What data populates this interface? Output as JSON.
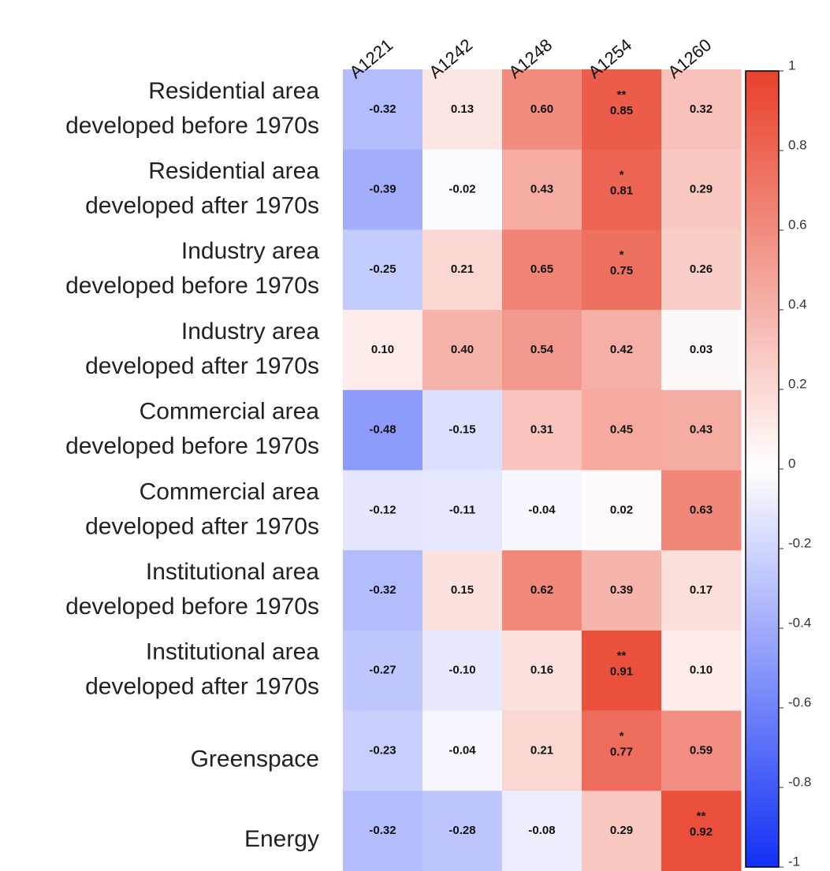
{
  "chart_data": {
    "type": "heatmap",
    "columns": [
      "A1221",
      "A1242",
      "A1248",
      "A1254",
      "A1260"
    ],
    "rows": [
      [
        "Residential area",
        "developed before 1970s"
      ],
      [
        "Residential area",
        "developed after 1970s"
      ],
      [
        "Industry area",
        "developed before 1970s"
      ],
      [
        "Industry area",
        "developed after 1970s"
      ],
      [
        "Commercial area",
        "developed before 1970s"
      ],
      [
        "Commercial area",
        "developed after 1970s"
      ],
      [
        "Institutional area",
        "developed before 1970s"
      ],
      [
        "Institutional area",
        "developed after 1970s"
      ],
      [
        "Greenspace"
      ],
      [
        "Energy"
      ]
    ],
    "values": [
      [
        -0.32,
        0.13,
        0.6,
        0.85,
        0.32
      ],
      [
        -0.39,
        -0.02,
        0.43,
        0.81,
        0.29
      ],
      [
        -0.25,
        0.21,
        0.65,
        0.75,
        0.26
      ],
      [
        0.1,
        0.4,
        0.54,
        0.42,
        0.03
      ],
      [
        -0.48,
        -0.15,
        0.31,
        0.45,
        0.43
      ],
      [
        -0.12,
        -0.11,
        -0.04,
        0.02,
        0.63
      ],
      [
        -0.32,
        0.15,
        0.62,
        0.39,
        0.17
      ],
      [
        -0.27,
        -0.1,
        0.16,
        0.91,
        0.1
      ],
      [
        -0.23,
        -0.04,
        0.21,
        0.77,
        0.59
      ],
      [
        -0.32,
        -0.28,
        -0.08,
        0.29,
        0.92
      ]
    ],
    "value_labels": [
      [
        "-0.32",
        "0.13",
        "0.60",
        "0.85",
        "0.32"
      ],
      [
        "-0.39",
        "-0.02",
        "0.43",
        "0.81",
        "0.29"
      ],
      [
        "-0.25",
        "0.21",
        "0.65",
        "0.75",
        "0.26"
      ],
      [
        "0.10",
        "0.40",
        "0.54",
        "0.42",
        "0.03"
      ],
      [
        "-0.48",
        "-0.15",
        "0.31",
        "0.45",
        "0.43"
      ],
      [
        "-0.12",
        "-0.11",
        "-0.04",
        "0.02",
        "0.63"
      ],
      [
        "-0.32",
        "0.15",
        "0.62",
        "0.39",
        "0.17"
      ],
      [
        "-0.27",
        "-0.10",
        "0.16",
        "0.91",
        "0.10"
      ],
      [
        "-0.23",
        "-0.04",
        "0.21",
        "0.77",
        "0.59"
      ],
      [
        "-0.32",
        "-0.28",
        "-0.08",
        "0.29",
        "0.92"
      ]
    ],
    "significance": [
      [
        null,
        null,
        null,
        "**",
        null
      ],
      [
        null,
        null,
        null,
        "*",
        null
      ],
      [
        null,
        null,
        null,
        "*",
        null
      ],
      [
        null,
        null,
        null,
        null,
        null
      ],
      [
        null,
        null,
        null,
        null,
        null
      ],
      [
        null,
        null,
        null,
        null,
        null
      ],
      [
        null,
        null,
        null,
        null,
        null
      ],
      [
        null,
        null,
        null,
        "**",
        null
      ],
      [
        null,
        null,
        null,
        "*",
        null
      ],
      [
        null,
        null,
        null,
        null,
        "**"
      ]
    ],
    "colormap": [
      "#1230f5",
      "#ffffff",
      "#e8402a"
    ],
    "clim": [
      -1,
      1
    ],
    "cticks": [
      1,
      0.8,
      0.6,
      0.4,
      0.2,
      0,
      -0.2,
      -0.4,
      -0.6,
      -0.8,
      -1
    ]
  }
}
